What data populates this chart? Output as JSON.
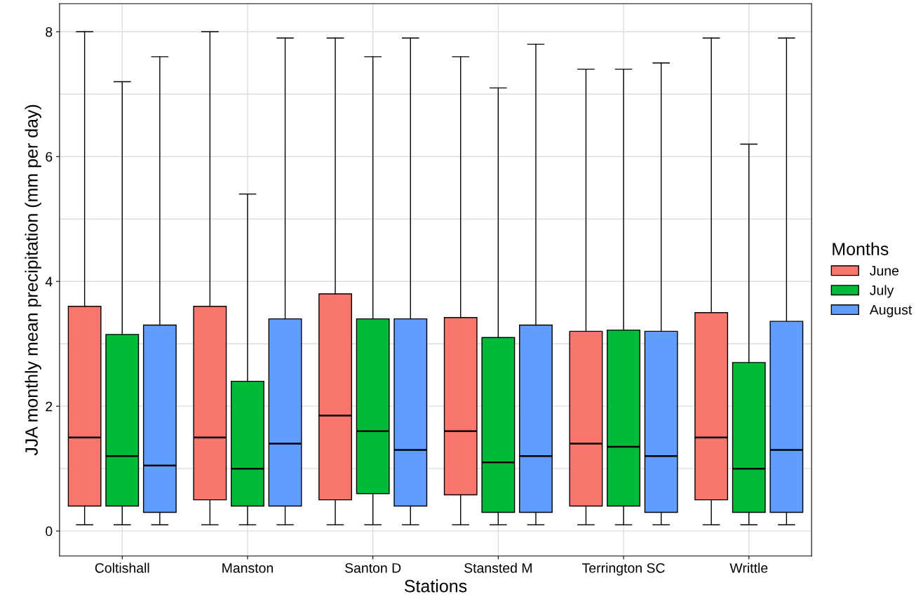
{
  "chart_data": {
    "type": "box",
    "xlabel": "Stations",
    "ylabel": "JJA monthly mean precipitation (mm per day)",
    "legend_title": "Months",
    "legend": "right",
    "categories": [
      "Coltishall",
      "Manston",
      "Santon D",
      "Stansted M",
      "Terrington SC",
      "Writtle"
    ],
    "ylim": [
      -0.4,
      8.45
    ],
    "yticks": [
      0,
      {
        "value": 1,
        "label": null
      },
      2,
      {
        "value": 3,
        "label": null
      },
      4,
      {
        "value": 5,
        "label": null
      },
      6,
      {
        "value": 7,
        "label": null
      },
      8
    ],
    "grid": true,
    "series": [
      {
        "name": "June",
        "color": "#f8766d",
        "boxes": [
          {
            "low": 0.1,
            "q1": 0.4,
            "median": 1.5,
            "q3": 3.6,
            "high": 8.0
          },
          {
            "low": 0.1,
            "q1": 0.5,
            "median": 1.5,
            "q3": 3.6,
            "high": 8.0
          },
          {
            "low": 0.1,
            "q1": 0.5,
            "median": 1.85,
            "q3": 3.8,
            "high": 7.9
          },
          {
            "low": 0.1,
            "q1": 0.58,
            "median": 1.6,
            "q3": 3.42,
            "high": 7.6
          },
          {
            "low": 0.1,
            "q1": 0.4,
            "median": 1.4,
            "q3": 3.2,
            "high": 7.4
          },
          {
            "low": 0.1,
            "q1": 0.5,
            "median": 1.5,
            "q3": 3.5,
            "high": 7.9
          }
        ]
      },
      {
        "name": "July",
        "color": "#00ba38",
        "boxes": [
          {
            "low": 0.1,
            "q1": 0.4,
            "median": 1.2,
            "q3": 3.15,
            "high": 7.2
          },
          {
            "low": 0.1,
            "q1": 0.4,
            "median": 1.0,
            "q3": 2.4,
            "high": 5.4
          },
          {
            "low": 0.1,
            "q1": 0.6,
            "median": 1.6,
            "q3": 3.4,
            "high": 7.6
          },
          {
            "low": 0.1,
            "q1": 0.3,
            "median": 1.1,
            "q3": 3.1,
            "high": 7.1
          },
          {
            "low": 0.1,
            "q1": 0.4,
            "median": 1.35,
            "q3": 3.22,
            "high": 7.4
          },
          {
            "low": 0.1,
            "q1": 0.3,
            "median": 1.0,
            "q3": 2.7,
            "high": 6.2
          }
        ]
      },
      {
        "name": "August",
        "color": "#619cff",
        "boxes": [
          {
            "low": 0.1,
            "q1": 0.3,
            "median": 1.05,
            "q3": 3.3,
            "high": 7.6
          },
          {
            "low": 0.1,
            "q1": 0.4,
            "median": 1.4,
            "q3": 3.4,
            "high": 7.9
          },
          {
            "low": 0.1,
            "q1": 0.4,
            "median": 1.3,
            "q3": 3.4,
            "high": 7.9
          },
          {
            "low": 0.1,
            "q1": 0.3,
            "median": 1.2,
            "q3": 3.3,
            "high": 7.8
          },
          {
            "low": 0.1,
            "q1": 0.3,
            "median": 1.2,
            "q3": 3.2,
            "high": 7.5
          },
          {
            "low": 0.1,
            "q1": 0.3,
            "median": 1.3,
            "q3": 3.36,
            "high": 7.9
          }
        ]
      }
    ]
  }
}
